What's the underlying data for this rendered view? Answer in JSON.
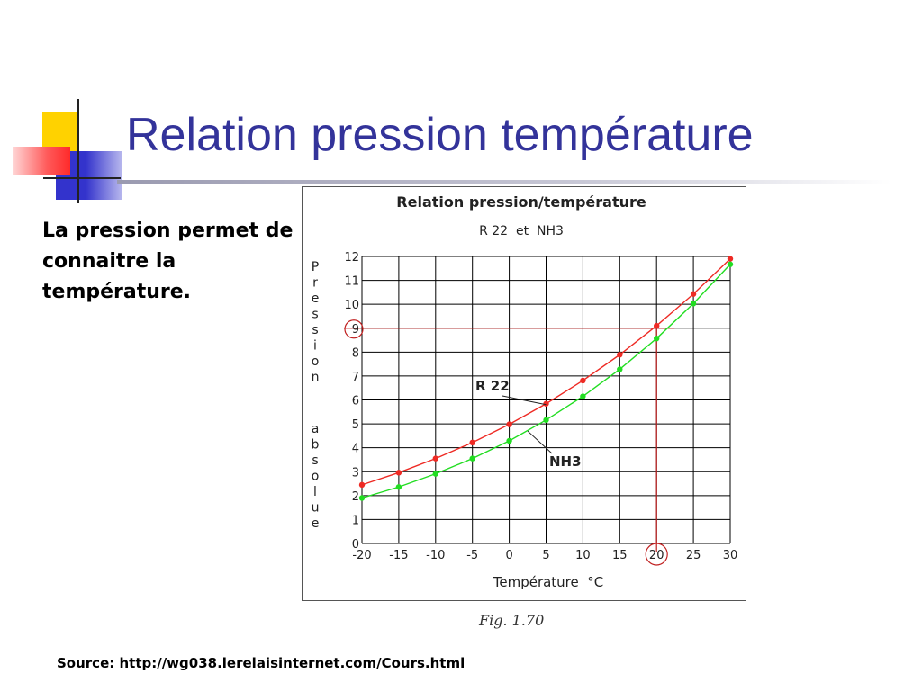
{
  "slide": {
    "title": "Relation pression température",
    "body_text": "La pression permet de connaitre la température.",
    "figure_caption": "Fig. 1.70",
    "source": "Source: http://wg038.lerelaisinternet.com/Cours.html"
  },
  "colors": {
    "title": "#33339a",
    "r22": "#ee2a24",
    "nh3": "#22dd22",
    "grid": "#000000",
    "highlight": "#c02020",
    "deco_yellow": "#ffd200",
    "deco_blue": "#3333cc",
    "deco_red": "#ff3b3b"
  },
  "chart_data": {
    "type": "line",
    "title": "Relation pression/température",
    "subtitle": "R 22  et  NH3",
    "xlabel": "Température  °C",
    "ylabel": "Pression absolue",
    "x": [
      -20,
      -15,
      -10,
      -5,
      0,
      5,
      10,
      15,
      20,
      25,
      30
    ],
    "x_ticks": [
      "-20",
      "-15",
      "-10",
      "-5",
      "0",
      "5",
      "10",
      "15",
      "20",
      "25",
      "30"
    ],
    "y_ticks": [
      "0",
      "1",
      "2",
      "3",
      "4",
      "5",
      "6",
      "7",
      "8",
      "9",
      "10",
      "11",
      "12"
    ],
    "xlim": [
      -20,
      30
    ],
    "ylim": [
      0,
      12
    ],
    "grid": true,
    "series": [
      {
        "name": "R 22",
        "values": [
          2.45,
          2.96,
          3.55,
          4.22,
          4.98,
          5.84,
          6.81,
          7.89,
          9.1,
          10.43,
          11.9
        ]
      },
      {
        "name": "NH3",
        "values": [
          1.9,
          2.36,
          2.91,
          3.55,
          4.29,
          5.16,
          6.15,
          7.28,
          8.57,
          10.03,
          11.67
        ]
      }
    ],
    "annotations": {
      "highlight_x": 20,
      "highlight_y": 9,
      "highlight_x_label": "20",
      "highlight_y_label": "9"
    }
  }
}
